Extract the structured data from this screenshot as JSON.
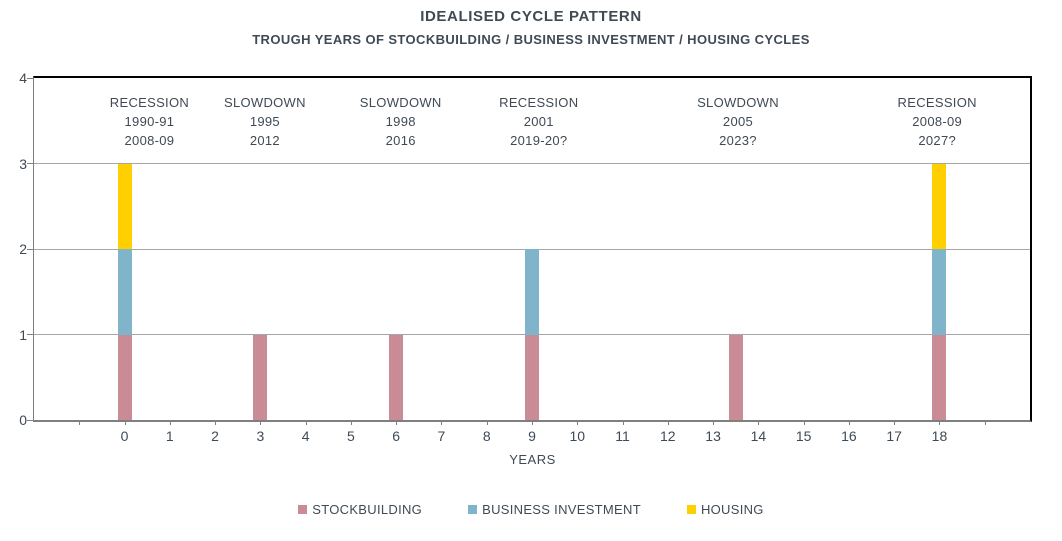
{
  "title": "IDEALISED CYCLE PATTERN",
  "subtitle": "TROUGH YEARS OF STOCKBUILDING / BUSINESS INVESTMENT / HOUSING CYCLES",
  "colors": {
    "stockbuilding": "#C98C96",
    "business_investment": "#7FB4CA",
    "housing": "#FFCF00",
    "text": "#3F4A55",
    "gridline": "#A6A6A6",
    "axis": "#7F7F7F",
    "border": "#000000"
  },
  "chart_data": {
    "type": "bar",
    "stacked": true,
    "title": "IDEALISED CYCLE PATTERN",
    "subtitle": "TROUGH YEARS OF STOCKBUILDING / BUSINESS INVESTMENT / HOUSING CYCLES",
    "xlabel": "YEARS",
    "ylabel": "",
    "xlim": [
      -2,
      20
    ],
    "ylim": [
      0,
      4
    ],
    "grid": "horizontal",
    "legend_position": "bottom",
    "x_ticks": [
      0,
      1,
      2,
      3,
      4,
      5,
      6,
      7,
      8,
      9,
      10,
      11,
      12,
      13,
      14,
      15,
      16,
      17,
      18
    ],
    "y_ticks": [
      0,
      1,
      2,
      3,
      4
    ],
    "series_names": [
      "STOCKBUILDING",
      "BUSINESS INVESTMENT",
      "HOUSING"
    ],
    "bars": [
      {
        "x": 0,
        "segments": [
          {
            "series": "STOCKBUILDING",
            "value": 1
          },
          {
            "series": "BUSINESS INVESTMENT",
            "value": 1
          },
          {
            "series": "HOUSING",
            "value": 1
          }
        ]
      },
      {
        "x": 3,
        "segments": [
          {
            "series": "STOCKBUILDING",
            "value": 1
          }
        ]
      },
      {
        "x": 6,
        "segments": [
          {
            "series": "STOCKBUILDING",
            "value": 1
          }
        ]
      },
      {
        "x": 9,
        "segments": [
          {
            "series": "STOCKBUILDING",
            "value": 1
          },
          {
            "series": "BUSINESS INVESTMENT",
            "value": 1
          }
        ]
      },
      {
        "x": 13.5,
        "segments": [
          {
            "series": "STOCKBUILDING",
            "value": 1
          }
        ]
      },
      {
        "x": 18,
        "segments": [
          {
            "series": "STOCKBUILDING",
            "value": 1
          },
          {
            "series": "BUSINESS INVESTMENT",
            "value": 1
          },
          {
            "series": "HOUSING",
            "value": 1
          }
        ]
      }
    ],
    "annotations": [
      {
        "x": 0.55,
        "lines": [
          "RECESSION",
          "1990-91",
          "2008-09"
        ]
      },
      {
        "x": 3.1,
        "lines": [
          "SLOWDOWN",
          "1995",
          "2012"
        ]
      },
      {
        "x": 6.1,
        "lines": [
          "SLOWDOWN",
          "1998",
          "2016"
        ]
      },
      {
        "x": 9.15,
        "lines": [
          "RECESSION",
          "2001",
          "2019-20?"
        ]
      },
      {
        "x": 13.55,
        "lines": [
          "SLOWDOWN",
          "2005",
          "2023?"
        ]
      },
      {
        "x": 17.95,
        "lines": [
          "RECESSION",
          "2008-09",
          "2027?"
        ]
      }
    ]
  },
  "legend": {
    "items": [
      {
        "label": "STOCKBUILDING",
        "color": "#C98C96"
      },
      {
        "label": "BUSINESS INVESTMENT",
        "color": "#7FB4CA"
      },
      {
        "label": "HOUSING",
        "color": "#FFCF00"
      }
    ]
  }
}
